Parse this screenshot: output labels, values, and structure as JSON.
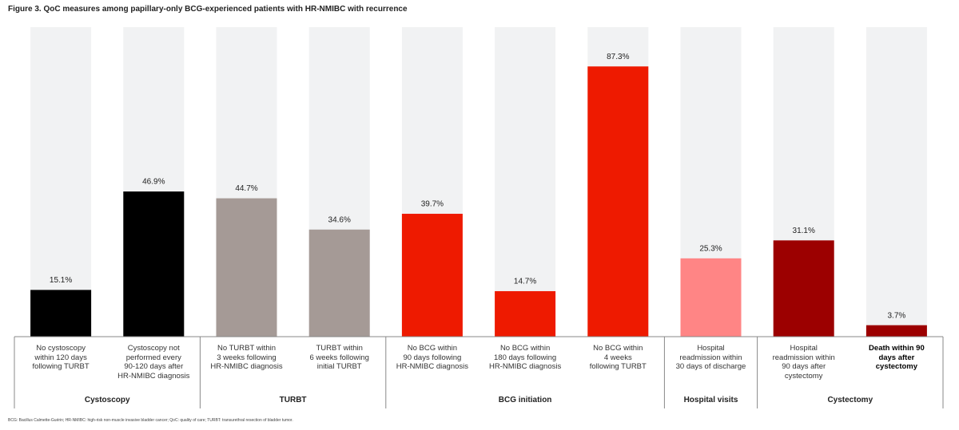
{
  "chart_data": {
    "type": "bar",
    "title": "Figure 3. QoC measures among papillary-only BCG-experienced patients with HR-NMIBC with recurrence",
    "categories": [
      "No cystoscopy\nwithin 120 days\nfollowing TURBT",
      "Cystoscopy not\nperformed every\n90-120 days after\nHR-NMIBC diagnosis",
      "No TURBT within\n3 weeks following\nHR-NMIBC diagnosis",
      "TURBT within\n6 weeks following\ninitial TURBT",
      "No BCG within\n90 days following\nHR-NMIBC diagnosis",
      "No BCG within\n180 days following\nHR-NMIBC diagnosis",
      "No BCG within\n4 weeks\nfollowing TURBT",
      "Hospital\nreadmission within\n30 days of discharge",
      "Hospital\nreadmission within\n90 days after\ncystectomy",
      "Death within 90\ndays after\ncystectomy"
    ],
    "values": [
      15.1,
      46.9,
      44.7,
      34.6,
      39.7,
      14.7,
      87.3,
      25.3,
      31.1,
      3.7
    ],
    "value_labels": [
      "15.1%",
      "46.9%",
      "44.7%",
      "34.6%",
      "39.7%",
      "14.7%",
      "87.3%",
      "25.3%",
      "31.1%",
      "3.7%"
    ],
    "colors": [
      "#000000",
      "#000000",
      "#a59a96",
      "#a59a96",
      "#ee1a00",
      "#ee1a00",
      "#ee1a00",
      "#ff8585",
      "#9c0000",
      "#9c0000"
    ],
    "groups": [
      {
        "name": "Cystoscopy",
        "count": 2
      },
      {
        "name": "TURBT",
        "count": 2
      },
      {
        "name": "BCG initiation",
        "count": 3
      },
      {
        "name": "Hospital visits",
        "count": 1
      },
      {
        "name": "Cystectomy",
        "count": 2
      }
    ],
    "ylim": [
      0,
      100
    ],
    "footnote": "BCG: Bacillus Calmette-Guérin; HR-NMIBC: high-risk non-muscle invasive bladder cancer; QoC: quality of care; TURBT: transurethral resection of bladder tumor."
  }
}
